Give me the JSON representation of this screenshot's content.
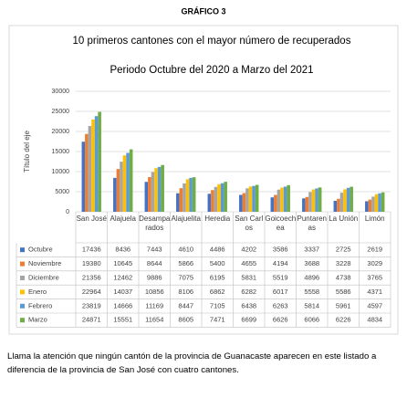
{
  "heading": "GRÁFICO 3",
  "chart_data": {
    "type": "bar",
    "title": [
      "10 primeros cantones con el mayor número de recuperados",
      "Periodo Octubre del 2020 a Marzo del 2021"
    ],
    "y_label": "Título del eje",
    "categories": [
      "San José",
      "Alajuela",
      "Desamparados",
      "Alajuelita",
      "Heredia",
      "San Carlos",
      "Goicoechea",
      "Puntarenas",
      "La Unión",
      "Limón"
    ],
    "series": [
      {
        "name": "Octubre",
        "color": "#4472c4",
        "values": [
          17436,
          8436,
          7443,
          4610,
          4486,
          4202,
          3586,
          3337,
          2725,
          2619
        ]
      },
      {
        "name": "Noviembre",
        "color": "#ed7d31",
        "values": [
          19380,
          10645,
          8644,
          5866,
          5400,
          4655,
          4194,
          3688,
          3228,
          3029
        ]
      },
      {
        "name": "Diciembre",
        "color": "#a5a5a5",
        "values": [
          21356,
          12462,
          9886,
          7075,
          6195,
          5831,
          5519,
          4896,
          4738,
          3765
        ]
      },
      {
        "name": "Enero",
        "color": "#ffc000",
        "values": [
          22964,
          14037,
          10856,
          8106,
          6862,
          6282,
          6017,
          5558,
          5586,
          4371
        ]
      },
      {
        "name": "Febrero",
        "color": "#5b9bd5",
        "values": [
          23819,
          14666,
          11169,
          8447,
          7105,
          6438,
          6263,
          5814,
          5961,
          4597
        ]
      },
      {
        "name": "Marzo",
        "color": "#70ad47",
        "values": [
          24871,
          15551,
          11654,
          8605,
          7471,
          6699,
          6626,
          6066,
          6226,
          4834
        ]
      }
    ],
    "ylim": [
      0,
      30000
    ],
    "yticks": [
      0,
      5000,
      10000,
      15000,
      20000,
      25000,
      30000
    ],
    "grid": true
  },
  "footnote": "Llama la atención que ningún cantón de la provincia de Guanacaste aparecen en este listado a diferencia de la provincia de San José con cuatro cantones."
}
